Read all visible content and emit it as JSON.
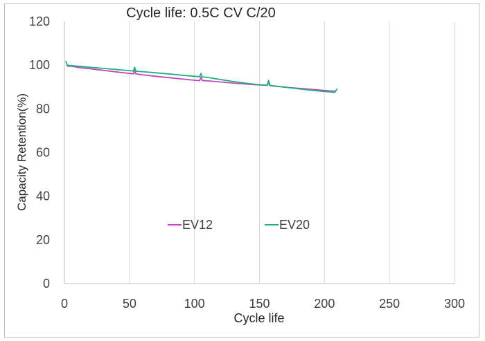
{
  "chart_data": {
    "type": "line",
    "title": "Cycle life: 0.5C CV C/20",
    "xlabel": "Cycle life",
    "ylabel": "Capacity Retention(%)",
    "xlim": [
      0,
      300
    ],
    "ylim": [
      0,
      120
    ],
    "x_ticks": [
      0,
      50,
      100,
      150,
      200,
      250,
      300
    ],
    "y_ticks": [
      0,
      20,
      40,
      60,
      80,
      100,
      120
    ],
    "x_tick_labels": [
      "0",
      "50",
      "100",
      "150",
      "200",
      "250",
      "300"
    ],
    "y_tick_labels": [
      "0",
      "20",
      "40",
      "60",
      "80",
      "100",
      "120"
    ],
    "grid": {
      "vertical": true,
      "horizontal": false
    },
    "legend_position": "inside-lower-center",
    "series": [
      {
        "name": "EV12",
        "color": "#c243c2",
        "x": [
          2,
          5,
          10,
          20,
          30,
          40,
          50,
          53,
          54,
          55,
          60,
          70,
          80,
          90,
          100,
          104,
          105,
          106,
          110,
          120,
          130,
          140,
          150,
          156,
          157,
          158,
          160,
          170,
          180,
          190,
          200,
          209
        ],
        "y": [
          99.5,
          99.5,
          99,
          98.3,
          97.6,
          96.9,
          96.2,
          96,
          97.5,
          96,
          95.6,
          94.9,
          94.3,
          93.7,
          93.1,
          92.9,
          94.5,
          93,
          92.8,
          92.3,
          91.8,
          91.3,
          90.9,
          90.7,
          91.8,
          90.6,
          90.5,
          89.9,
          89.4,
          88.9,
          88.4,
          88
        ]
      },
      {
        "name": "EV20",
        "color": "#1fad7a",
        "x": [
          1,
          2,
          5,
          10,
          20,
          30,
          40,
          50,
          53,
          54,
          55,
          60,
          70,
          80,
          90,
          100,
          104,
          105,
          106,
          110,
          120,
          130,
          140,
          150,
          156,
          157,
          158,
          160,
          170,
          180,
          190,
          200,
          208,
          209,
          210
        ],
        "y": [
          102,
          100,
          99.8,
          99.5,
          99,
          98.5,
          98,
          97.5,
          97.3,
          99,
          97.2,
          97,
          96.5,
          96,
          95.4,
          94.9,
          94.7,
          96.2,
          94.6,
          94.4,
          93.4,
          92.5,
          91.7,
          91,
          90.8,
          93,
          90.8,
          90.6,
          89.9,
          89.2,
          88.5,
          87.9,
          87.6,
          88.5,
          89.3
        ]
      }
    ]
  }
}
